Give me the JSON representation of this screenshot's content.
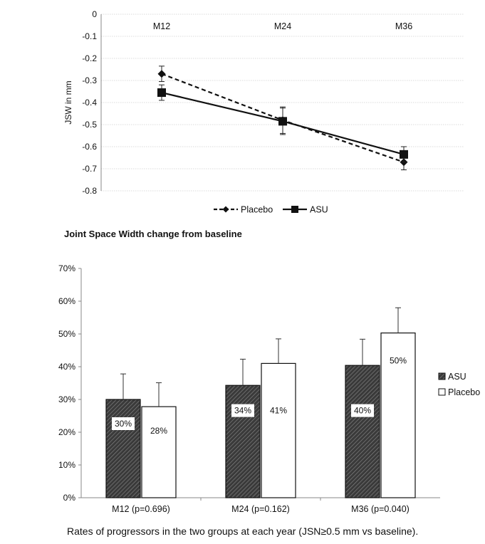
{
  "line_chart_caption": "Joint Space Width change from baseline",
  "bar_chart_caption": "Rates of progressors in the two groups at each year (JSN≥0.5 mm vs baseline).",
  "chart_data": [
    {
      "type": "line",
      "title": "",
      "xlabel": "",
      "ylabel": "JSW in mm",
      "categories": [
        "M12",
        "M24",
        "M36"
      ],
      "ylim": [
        -0.8,
        0
      ],
      "yticks": [
        0,
        -0.1,
        -0.2,
        -0.3,
        -0.4,
        -0.5,
        -0.6,
        -0.7,
        -0.8
      ],
      "ytick_labels": [
        "0",
        "-0.1",
        "-0.2",
        "-0.3",
        "-0.4",
        "-0.5",
        "-0.6",
        "-0.7",
        "-0.8"
      ],
      "grid": true,
      "legend_position": "bottom",
      "series": [
        {
          "name": "Placebo",
          "values": [
            -0.27,
            -0.48,
            -0.67
          ],
          "errors": [
            0.035,
            0.06,
            0.035
          ],
          "line_style": "dashed",
          "marker": "diamond",
          "color": "#111111"
        },
        {
          "name": "ASU",
          "values": [
            -0.355,
            -0.485,
            -0.635
          ],
          "errors": [
            0.035,
            0.06,
            0.035
          ],
          "line_style": "solid",
          "marker": "square",
          "color": "#111111"
        }
      ]
    },
    {
      "type": "bar",
      "title": "",
      "xlabel": "",
      "ylabel": "",
      "categories": [
        "M12 (p=0.696)",
        "M24 (p=0.162)",
        "M36 (p=0.040)"
      ],
      "ylim": [
        0,
        70
      ],
      "yticks": [
        0,
        10,
        20,
        30,
        40,
        50,
        60,
        70
      ],
      "ytick_labels": [
        "0%",
        "10%",
        "20%",
        "30%",
        "40%",
        "50%",
        "60%",
        "70%"
      ],
      "grid": false,
      "legend_position": "right",
      "series": [
        {
          "name": "ASU",
          "values": [
            30,
            34.3,
            40.4
          ],
          "errors": [
            7.8,
            8,
            8
          ],
          "data_labels": [
            "30%",
            "34%",
            "40%"
          ],
          "fill": "hatched-dark"
        },
        {
          "name": "Placebo",
          "values": [
            27.8,
            41,
            50.3
          ],
          "errors": [
            7.3,
            7.5,
            7.7
          ],
          "data_labels": [
            "28%",
            "41%",
            "50%"
          ],
          "fill": "white"
        }
      ]
    }
  ]
}
